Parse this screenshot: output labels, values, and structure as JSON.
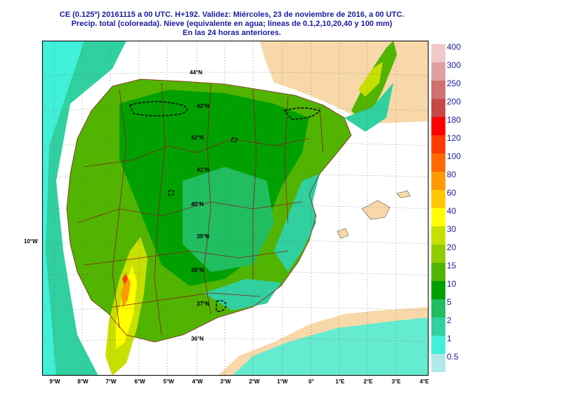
{
  "header": {
    "line1": "CE (0.125º) 20161115 a 00 UTC.  H+192.  Validez: Miércoles, 23 de noviembre de 2016,  a  00 UTC.",
    "line2": "Precip. total (coloreada). Nieve (equivalente en agua; líneas de 0.1,2,10,20,40 y 100 mm)",
    "line3": "En las 24 horas anteriores."
  },
  "axes": {
    "x_ticks": [
      "9°W",
      "8°W",
      "7°W",
      "6°W",
      "5°W",
      "4°W",
      "3°W",
      "2°W",
      "1°W",
      "0°",
      "1°E",
      "2°E",
      "3°E",
      "4°E"
    ],
    "y_outer_label": "10°W",
    "lat_labels": [
      "44°N",
      "43°N",
      "42°N",
      "41°N",
      "40°N",
      "39°N",
      "38°N",
      "37°N",
      "36°N"
    ]
  },
  "legend": {
    "levels": [
      "400",
      "300",
      "250",
      "200",
      "180",
      "120",
      "100",
      "80",
      "60",
      "40",
      "30",
      "20",
      "15",
      "10",
      "5",
      "2",
      "1",
      "0.5"
    ],
    "colors": [
      "#f0c8c8",
      "#e0a0a0",
      "#d07070",
      "#c84848",
      "#ff0000",
      "#ff3a00",
      "#ff6a00",
      "#ff9a00",
      "#ffc800",
      "#ffff00",
      "#c8e000",
      "#90cc00",
      "#50b400",
      "#00a000",
      "#20be60",
      "#30d0a0",
      "#40f0d8",
      "#b0e8ec"
    ]
  },
  "map_colors": {
    "sea": "#ffffff",
    "land_no_precip": "#f8d8a8",
    "boundary": "#8b1a1a",
    "snow_line": "#000000"
  }
}
